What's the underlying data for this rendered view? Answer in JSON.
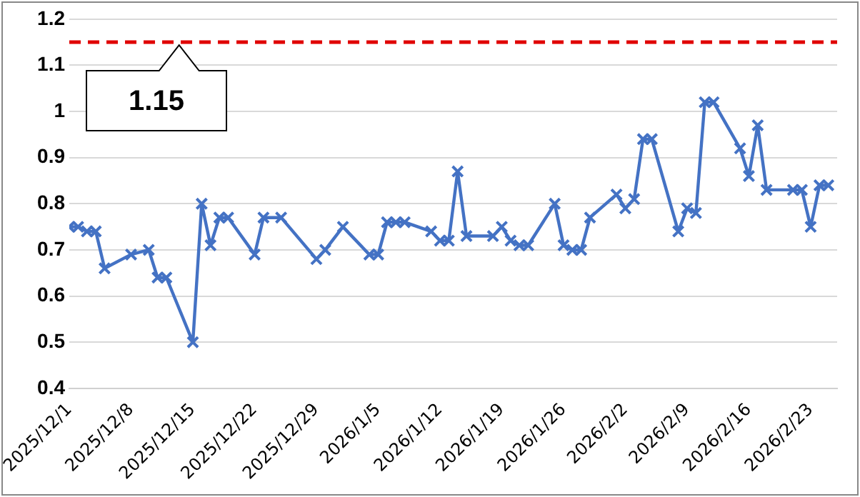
{
  "chart_data": {
    "type": "line",
    "x": [
      "2025-12-01",
      "2025-12-02",
      "2025-12-03",
      "2025-12-04",
      "2025-12-05",
      "2025-12-08",
      "2025-12-10",
      "2025-12-11",
      "2025-12-12",
      "2025-12-15",
      "2025-12-16",
      "2025-12-17",
      "2025-12-18",
      "2025-12-19",
      "2025-12-22",
      "2025-12-23",
      "2025-12-25",
      "2025-12-29",
      "2025-12-30",
      "2026-01-01",
      "2026-01-04",
      "2026-01-05",
      "2026-01-06",
      "2026-01-07",
      "2026-01-08",
      "2026-01-11",
      "2026-01-12",
      "2026-01-13",
      "2026-01-14",
      "2026-01-15",
      "2026-01-18",
      "2026-01-19",
      "2026-01-20",
      "2026-01-21",
      "2026-01-22",
      "2026-01-25",
      "2026-01-26",
      "2026-01-27",
      "2026-01-28",
      "2026-01-29",
      "2026-02-01",
      "2026-02-02",
      "2026-02-03",
      "2026-02-04",
      "2026-02-05",
      "2026-02-08",
      "2026-02-09",
      "2026-02-10",
      "2026-02-11",
      "2026-02-12",
      "2026-02-15",
      "2026-02-16",
      "2026-02-17",
      "2026-02-18",
      "2026-02-21",
      "2026-02-22",
      "2026-02-23",
      "2026-02-24",
      "2026-02-25"
    ],
    "series": [
      {
        "color": "#4472c4",
        "values": [
          0.75,
          0.75,
          0.74,
          0.74,
          0.66,
          0.69,
          0.7,
          0.64,
          0.64,
          0.5,
          0.8,
          0.71,
          0.77,
          0.77,
          0.69,
          0.77,
          0.77,
          0.68,
          0.7,
          0.75,
          0.69,
          0.69,
          0.76,
          0.76,
          0.76,
          0.74,
          0.72,
          0.72,
          0.87,
          0.73,
          0.73,
          0.75,
          0.72,
          0.71,
          0.71,
          0.8,
          0.71,
          0.7,
          0.7,
          0.77,
          0.82,
          0.79,
          0.81,
          0.94,
          0.94,
          0.74,
          0.79,
          0.78,
          1.02,
          1.02,
          0.92,
          0.86,
          0.97,
          0.83,
          0.83,
          0.83,
          0.75,
          0.84,
          0.84
        ]
      }
    ],
    "xlim": [
      "2025-12-01",
      "2026-02-26"
    ],
    "xticks": [
      {
        "value": "2025-12-01",
        "label": "2025/12/1"
      },
      {
        "value": "2025-12-08",
        "label": "2025/12/8"
      },
      {
        "value": "2025-12-15",
        "label": "2025/12/15"
      },
      {
        "value": "2025-12-22",
        "label": "2025/12/22"
      },
      {
        "value": "2025-12-29",
        "label": "2025/12/29"
      },
      {
        "value": "2026-01-05",
        "label": "2026/1/5"
      },
      {
        "value": "2026-01-12",
        "label": "2026/1/12"
      },
      {
        "value": "2026-01-19",
        "label": "2026/1/19"
      },
      {
        "value": "2026-01-26",
        "label": "2026/1/26"
      },
      {
        "value": "2026-02-02",
        "label": "2026/2/2"
      },
      {
        "value": "2026-02-09",
        "label": "2026/2/9"
      },
      {
        "value": "2026-02-16",
        "label": "2026/2/16"
      },
      {
        "value": "2026-02-23",
        "label": "2026/2/23"
      }
    ],
    "ylim": [
      0.4,
      1.2
    ],
    "yticks": [
      0.4,
      0.5,
      0.6,
      0.7,
      0.8,
      0.9,
      1,
      1.1,
      1.2
    ],
    "ref_lines": [
      {
        "axis": "y",
        "value": 1.15,
        "label": "1.15",
        "color": "#e00000",
        "line_style": "dashed"
      }
    ],
    "grid": "y",
    "legend": false,
    "marker": "cross",
    "line_style": "solid"
  }
}
